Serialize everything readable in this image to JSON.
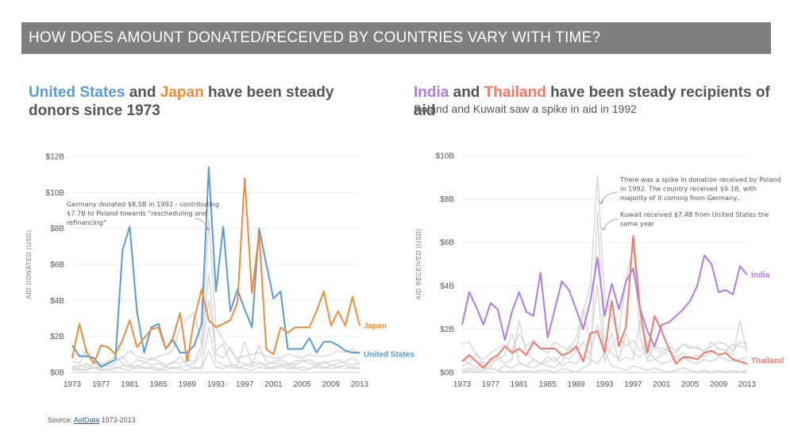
{
  "banner": "HOW DOES AMOUNT DONATED/RECEIVED BY COUNTRIES VARY WITH TIME?",
  "left_title": {
    "country1": "United States",
    "and": "and",
    "country2": "Japan",
    "rest": "have been steady donors since 1973"
  },
  "right_title": {
    "country1": "India",
    "and": "and",
    "country2": "Thailand",
    "rest": "have been steady recipients of aid",
    "subtitle": "Poland and Kuwait saw a spike in aid in 1992"
  },
  "source": {
    "prefix": "Source:",
    "link": "AidData",
    "suffix": "1973-2013"
  },
  "colors": {
    "us": "#5b9bd5",
    "japan": "#ed8d3b",
    "india": "#b07be6",
    "thailand": "#f07a6a",
    "other": "#d3d3d3",
    "banner": "#7f7f7f"
  },
  "chart_data": [
    {
      "type": "line",
      "title": "United States and Japan have been steady donors since 1973",
      "ylabel": "AID DONATED (USD)",
      "x_ticks": [
        "1973",
        "1977",
        "1981",
        "1985",
        "1989",
        "1993",
        "1997",
        "2001",
        "2005",
        "2009",
        "2013"
      ],
      "y_ticks": [
        "$0B",
        "$2B",
        "$4B",
        "$6B",
        "$8B",
        "$10B",
        "$12B"
      ],
      "ylim": [
        0,
        12
      ],
      "xlim": [
        1973,
        2013
      ],
      "annotations": [
        "Germany donated $8.5B in 1992 - contributing $7.7B to Poland towards \"rescheduling and refinancing\""
      ],
      "series": [
        {
          "name": "United States",
          "color": "#5b9bd5",
          "x_start": 1973,
          "values": [
            1.5,
            0.9,
            0.9,
            0.8,
            0.3,
            0.5,
            0.7,
            6.8,
            8.1,
            3.4,
            1.1,
            2.5,
            2.7,
            1.3,
            1.8,
            1.1,
            1.1,
            1.5,
            2.7,
            11.4,
            4.5,
            8.1,
            3.4,
            4.6,
            3.5,
            2.5,
            8.0,
            6.0,
            4.1,
            4.5,
            1.3,
            1.3,
            1.3,
            1.9,
            1.1,
            1.7,
            1.7,
            1.5,
            1.2,
            1.1,
            1.1
          ]
        },
        {
          "name": "Japan",
          "color": "#ed8d3b",
          "x_start": 1973,
          "values": [
            0.8,
            2.7,
            1.1,
            0.5,
            1.5,
            1.4,
            1.0,
            1.8,
            2.9,
            1.4,
            1.9,
            2.4,
            2.5,
            1.3,
            1.9,
            3.3,
            0.6,
            3.0,
            4.6,
            2.9,
            2.5,
            2.7,
            2.9,
            3.9,
            10.8,
            4.4,
            7.7,
            1.3,
            1.0,
            2.5,
            2.2,
            2.5,
            2.5,
            2.5,
            3.4,
            4.5,
            2.6,
            3.4,
            2.6,
            4.2,
            2.6
          ]
        },
        {
          "name": "Germany",
          "color": "#d3d3d3",
          "x_start": 1973,
          "values": [
            0.3,
            0.4,
            0.3,
            0.5,
            0.4,
            0.6,
            0.7,
            0.8,
            1.2,
            0.9,
            0.8,
            0.7,
            0.9,
            1.0,
            1.2,
            2.5,
            3.0,
            3.3,
            1.5,
            8.5,
            2.5,
            1.8,
            1.2,
            0.8,
            0.9,
            1.0,
            1.1,
            0.9,
            0.8,
            0.8,
            1.0,
            0.9,
            0.8,
            1.0,
            0.9,
            0.9,
            1.0,
            1.2,
            1.1,
            1.3,
            1.0
          ]
        },
        {
          "name": "",
          "color": "#d3d3d3",
          "x_start": 1973,
          "values": [
            0.2,
            0.3,
            0.5,
            0.2,
            0.4,
            0.6,
            0.9,
            0.5,
            0.3,
            0.7,
            0.6,
            0.4,
            0.5,
            0.3,
            0.6,
            0.5,
            0.7,
            0.6,
            1.5,
            5.5,
            1.0,
            0.8,
            1.4,
            0.6,
            0.5,
            0.4,
            1.5,
            0.6,
            0.5,
            0.5,
            0.4,
            0.6,
            0.7,
            0.5,
            0.4,
            0.5,
            0.6,
            0.7,
            0.5,
            0.4,
            0.5
          ]
        },
        {
          "name": "",
          "color": "#d3d3d3",
          "x_start": 1973,
          "values": [
            0.6,
            0.5,
            1.3,
            0.7,
            0.5,
            0.3,
            0.5,
            0.9,
            0.4,
            0.3,
            0.5,
            0.8,
            0.6,
            0.4,
            0.5,
            0.9,
            0.4,
            0.5,
            1.0,
            4.0,
            1.2,
            1.6,
            0.5,
            0.4,
            1.7,
            0.5,
            0.6,
            0.4,
            0.6,
            0.7,
            0.5,
            0.4,
            0.6,
            0.7,
            0.5,
            0.6,
            0.4,
            0.5,
            0.6,
            0.8,
            0.5
          ]
        },
        {
          "name": "",
          "color": "#d3d3d3",
          "x_start": 1973,
          "values": [
            0.1,
            0.2,
            0.1,
            0.3,
            0.2,
            0.1,
            0.2,
            0.4,
            0.3,
            0.2,
            0.3,
            0.2,
            0.1,
            0.3,
            0.2,
            0.3,
            0.4,
            0.2,
            0.3,
            2.5,
            0.6,
            0.4,
            0.3,
            0.2,
            0.4,
            0.3,
            0.5,
            0.3,
            0.2,
            0.3,
            0.4,
            0.2,
            0.3,
            0.2,
            0.4,
            0.3,
            0.2,
            0.3,
            0.4,
            0.2,
            0.3
          ]
        },
        {
          "name": "",
          "color": "#d3d3d3",
          "x_start": 1973,
          "values": [
            0.3,
            0.1,
            0.2,
            0.3,
            0.1,
            0.2,
            0.3,
            0.2,
            0.1,
            0.4,
            0.2,
            0.3,
            0.2,
            0.1,
            0.3,
            0.2,
            0.1,
            0.3,
            0.2,
            1.2,
            0.3,
            0.2,
            0.4,
            0.3,
            0.2,
            0.1,
            0.3,
            0.2,
            0.3,
            0.4,
            0.2,
            0.3,
            0.1,
            0.2,
            0.3,
            0.2,
            0.4,
            0.3,
            0.2,
            0.3,
            0.2
          ]
        }
      ]
    },
    {
      "type": "line",
      "title": "India and Thailand have been steady recipients of aid",
      "subtitle": "Poland and Kuwait saw a spike in aid in 1992",
      "ylabel": "AID RECEIVED (USD)",
      "x_ticks": [
        "1973",
        "1977",
        "1981",
        "1985",
        "1989",
        "1993",
        "1997",
        "2001",
        "2005",
        "2009",
        "2013"
      ],
      "y_ticks": [
        "$0B",
        "$2B",
        "$4B",
        "$6B",
        "$8B",
        "$10B"
      ],
      "ylim": [
        0,
        10
      ],
      "xlim": [
        1973,
        2013
      ],
      "annotations": [
        "There was a spike in donation received by Poland in 1992. The country received $9.1B, with majority of it coming from Germany..",
        "Kuwait received $7.4B from United States the same year"
      ],
      "series": [
        {
          "name": "India",
          "color": "#b07be6",
          "x_start": 1973,
          "values": [
            2.2,
            3.7,
            3.0,
            2.2,
            3.2,
            2.9,
            1.5,
            2.8,
            3.7,
            2.8,
            2.6,
            4.6,
            1.6,
            2.9,
            4.2,
            3.8,
            2.9,
            2.0,
            3.3,
            5.3,
            2.6,
            4.1,
            2.9,
            4.2,
            4.8,
            2.9,
            1.9,
            1.2,
            2.2,
            2.3,
            2.6,
            2.9,
            3.3,
            4.0,
            5.4,
            5.0,
            3.7,
            3.8,
            3.6,
            4.9,
            4.5
          ]
        },
        {
          "name": "Thailand",
          "color": "#f07a6a",
          "x_start": 1973,
          "values": [
            0.5,
            0.8,
            0.5,
            0.2,
            0.6,
            0.8,
            1.2,
            0.9,
            1.1,
            0.8,
            1.4,
            1.1,
            1.1,
            1.1,
            0.8,
            0.9,
            1.2,
            0.5,
            1.8,
            1.9,
            0.9,
            3.3,
            1.2,
            2.1,
            6.3,
            2.8,
            0.9,
            2.6,
            1.9,
            1.1,
            0.4,
            0.7,
            0.7,
            0.6,
            0.9,
            1.0,
            0.8,
            0.9,
            0.6,
            0.5,
            0.4
          ]
        },
        {
          "name": "Poland",
          "color": "#d3d3d3",
          "x_start": 1973,
          "values": [
            0.1,
            0.2,
            0.1,
            0.3,
            0.2,
            0.1,
            0.3,
            0.2,
            0.4,
            0.3,
            0.2,
            0.4,
            0.3,
            0.2,
            0.5,
            1.2,
            1.0,
            2.8,
            4.0,
            9.1,
            3.5,
            2.6,
            1.6,
            1.2,
            1.5,
            1.0,
            1.4,
            1.1,
            0.9,
            1.2,
            1.0,
            1.3,
            1.1,
            1.2,
            0.9,
            1.4,
            1.1,
            1.0,
            1.3,
            1.2,
            1.1
          ]
        },
        {
          "name": "Kuwait",
          "color": "#d3d3d3",
          "x_start": 1973,
          "values": [
            0.0,
            0.1,
            0.0,
            0.1,
            0.2,
            0.1,
            0.0,
            0.1,
            0.0,
            0.1,
            0.0,
            0.1,
            0.1,
            0.0,
            0.2,
            0.1,
            0.0,
            0.2,
            0.4,
            7.4,
            0.9,
            0.3,
            0.2,
            0.1,
            0.3,
            0.2,
            0.1,
            0.2,
            0.1,
            0.0,
            0.1,
            0.2,
            0.1,
            0.0,
            0.1,
            0.0,
            0.1,
            0.0,
            0.1,
            0.0,
            0.1
          ]
        },
        {
          "name": "",
          "color": "#d3d3d3",
          "x_start": 1973,
          "values": [
            1.3,
            1.4,
            0.8,
            0.6,
            0.9,
            1.1,
            1.3,
            1.0,
            1.8,
            1.2,
            1.5,
            1.1,
            0.9,
            1.4,
            1.2,
            1.0,
            1.6,
            2.9,
            1.3,
            4.0,
            0.5,
            1.2,
            1.8,
            4.3,
            5.8,
            1.6,
            0.6,
            1.2,
            1.1,
            1.0,
            0.9,
            1.3,
            1.2,
            1.1,
            1.0,
            1.2,
            1.4,
            1.3,
            1.0,
            1.4,
            1.3
          ]
        },
        {
          "name": "",
          "color": "#d3d3d3",
          "x_start": 1973,
          "values": [
            0.3,
            0.4,
            0.2,
            0.5,
            0.3,
            0.7,
            0.4,
            0.6,
            2.4,
            0.9,
            0.6,
            0.4,
            0.7,
            0.5,
            0.8,
            0.6,
            1.0,
            1.4,
            0.8,
            2.2,
            1.3,
            0.9,
            0.6,
            1.8,
            0.9,
            0.7,
            1.1,
            0.6,
            0.8,
            1.0,
            0.7,
            0.9,
            0.6,
            0.8,
            0.7,
            0.9,
            1.1,
            1.0,
            0.8,
            2.4,
            0.9
          ]
        },
        {
          "name": "",
          "color": "#d3d3d3",
          "x_start": 1973,
          "values": [
            0.6,
            0.4,
            0.9,
            0.3,
            0.5,
            0.6,
            0.8,
            1.8,
            0.5,
            0.3,
            0.6,
            0.4,
            0.5,
            0.7,
            0.3,
            0.5,
            0.4,
            0.8,
            0.6,
            0.4,
            0.9,
            1.8,
            0.5,
            0.7,
            0.6,
            2.4,
            0.5,
            0.6,
            0.4,
            0.5,
            0.6,
            0.7,
            0.5,
            0.4,
            0.6,
            0.5,
            0.7,
            0.6,
            0.5,
            0.6,
            0.7
          ]
        }
      ]
    }
  ]
}
